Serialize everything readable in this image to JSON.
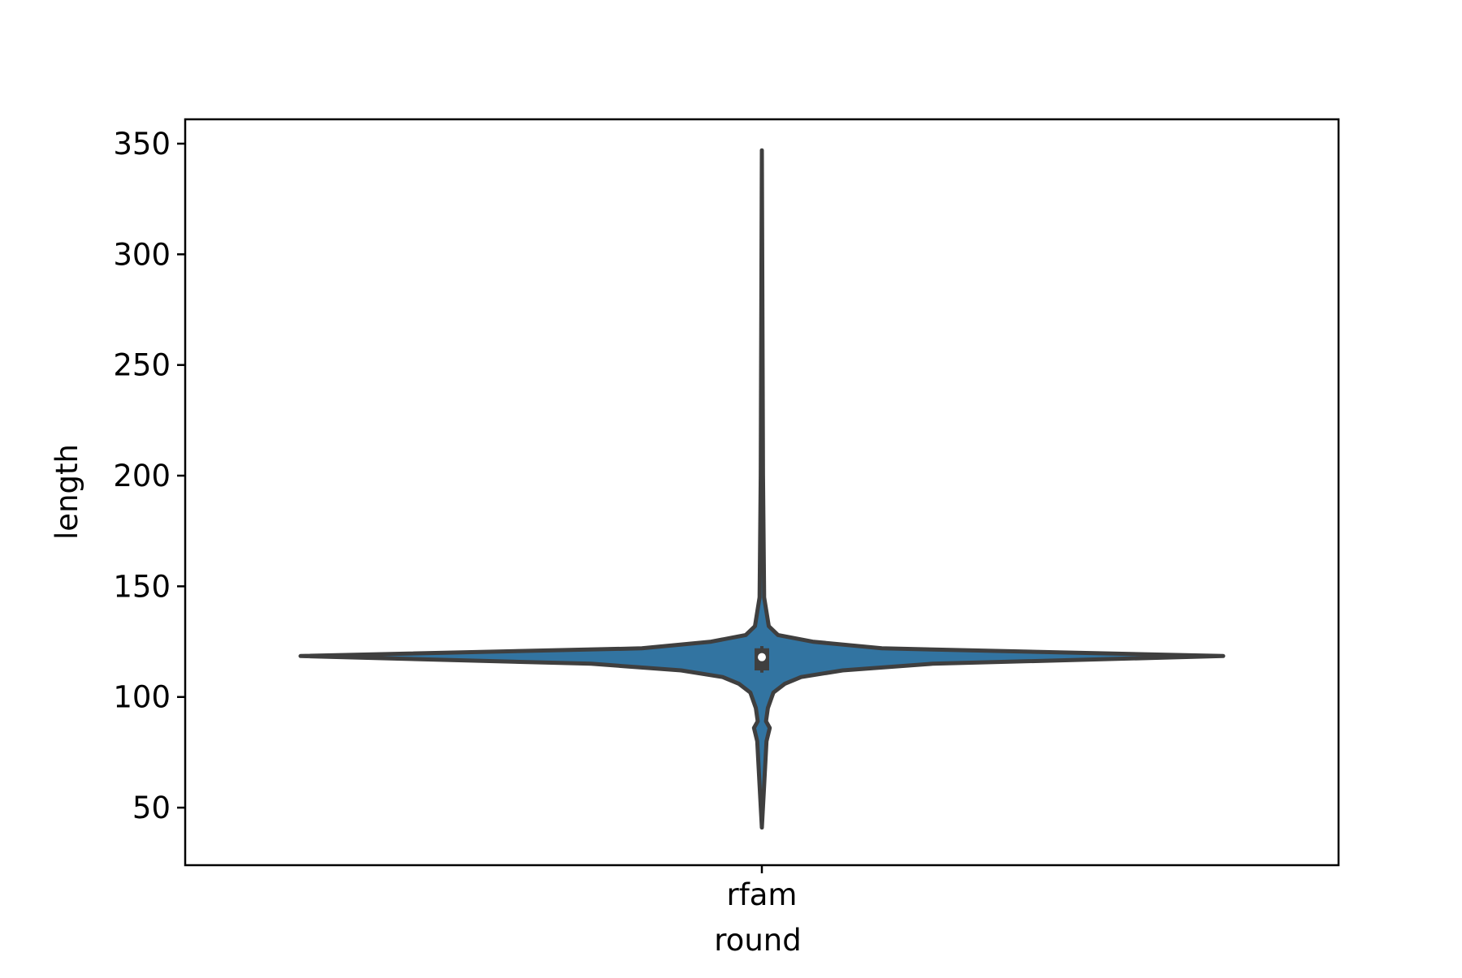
{
  "chart_data": {
    "type": "violin",
    "title": "",
    "xlabel": "round",
    "ylabel": "length",
    "categories": [
      "rfam"
    ],
    "yticks": [
      50,
      100,
      150,
      200,
      250,
      300,
      350
    ],
    "ylim": [
      24,
      361
    ],
    "grid": false,
    "legend": "none",
    "series": [
      {
        "category": "rfam",
        "color": "#3274a1",
        "edge_color": "#3f3f3f",
        "min": 41,
        "max": 347,
        "q1": 112,
        "median": 118,
        "q3": 122,
        "whisker_low": 111,
        "whisker_high": 123,
        "density_profile": [
          {
            "y": 41,
            "w": 0.0
          },
          {
            "y": 60,
            "w": 0.005
          },
          {
            "y": 80,
            "w": 0.01
          },
          {
            "y": 86,
            "w": 0.017
          },
          {
            "y": 89,
            "w": 0.009
          },
          {
            "y": 95,
            "w": 0.013
          },
          {
            "y": 102,
            "w": 0.025
          },
          {
            "y": 106,
            "w": 0.05
          },
          {
            "y": 109,
            "w": 0.085
          },
          {
            "y": 112,
            "w": 0.175
          },
          {
            "y": 115,
            "w": 0.37
          },
          {
            "y": 118.5,
            "w": 1.0
          },
          {
            "y": 122,
            "w": 0.26
          },
          {
            "y": 125,
            "w": 0.11
          },
          {
            "y": 128,
            "w": 0.035
          },
          {
            "y": 132,
            "w": 0.015
          },
          {
            "y": 145,
            "w": 0.005
          },
          {
            "y": 200,
            "w": 0.0025
          },
          {
            "y": 347,
            "w": 0.0
          }
        ]
      }
    ]
  }
}
